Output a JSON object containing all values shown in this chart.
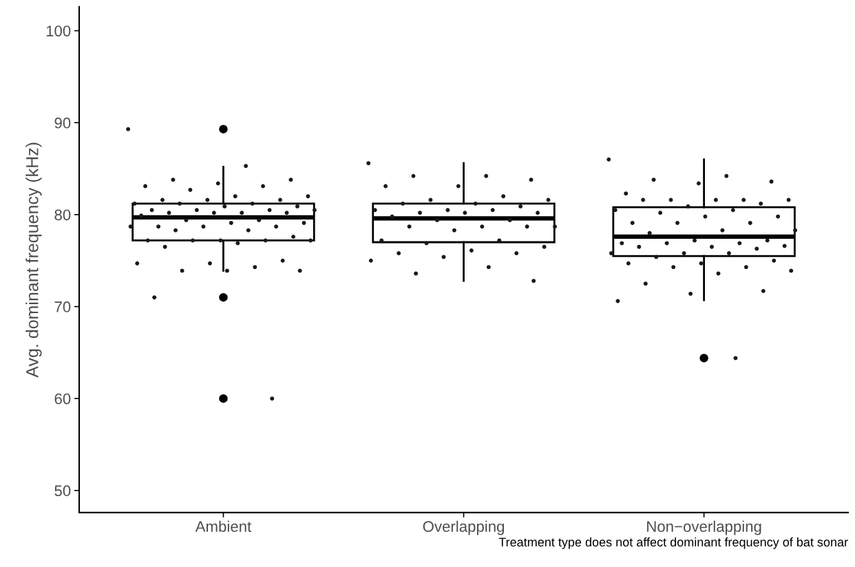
{
  "chart_data": {
    "type": "box",
    "ylabel": "Avg. dominant frequency (kHz)",
    "categories": [
      "Ambient",
      "Overlapping",
      "Non−overlapping"
    ],
    "boxes": [
      {
        "low": 73.9,
        "q1": 77.2,
        "median": 79.7,
        "q3": 81.2,
        "high": 85.2,
        "outliers": [
          89.3,
          71.0,
          60.0
        ]
      },
      {
        "low": 72.8,
        "q1": 77.0,
        "median": 79.6,
        "q3": 81.2,
        "high": 85.6
      },
      {
        "low": 70.7,
        "q1": 75.5,
        "median": 77.6,
        "q3": 80.8,
        "high": 86.0,
        "outliers": [
          64.4
        ]
      }
    ],
    "series": [
      {
        "type": "scatter",
        "color": "#1a1a1a",
        "x": [
          "Ambient",
          "Ambient",
          "Ambient",
          "Ambient",
          "Ambient",
          "Ambient",
          "Ambient",
          "Ambient",
          "Ambient",
          "Ambient",
          "Ambient",
          "Ambient",
          "Ambient",
          "Ambient",
          "Ambient",
          "Ambient",
          "Ambient",
          "Ambient",
          "Ambient",
          "Ambient",
          "Ambient",
          "Ambient",
          "Ambient",
          "Ambient",
          "Ambient",
          "Ambient",
          "Ambient",
          "Ambient",
          "Ambient",
          "Ambient",
          "Ambient",
          "Ambient",
          "Ambient",
          "Ambient",
          "Ambient",
          "Ambient",
          "Ambient",
          "Ambient",
          "Ambient",
          "Ambient",
          "Ambient",
          "Ambient",
          "Ambient",
          "Ambient",
          "Ambient",
          "Ambient",
          "Ambient",
          "Ambient",
          "Ambient",
          "Ambient",
          "Ambient",
          "Ambient",
          "Ambient",
          "Ambient"
        ],
        "values": [
          89.3,
          85.3,
          83.8,
          83.8,
          83.4,
          83.1,
          83.1,
          82.7,
          82.0,
          82.0,
          81.6,
          81.6,
          81.6,
          81.2,
          81.2,
          81.2,
          80.9,
          80.9,
          80.5,
          80.5,
          80.5,
          80.5,
          80.2,
          80.2,
          80.2,
          80.2,
          79.9,
          79.4,
          79.4,
          79.1,
          79.1,
          78.7,
          78.7,
          78.7,
          78.7,
          78.3,
          78.3,
          77.6,
          77.2,
          77.2,
          77.2,
          77.2,
          77.2,
          76.9,
          76.5,
          75.0,
          74.7,
          74.7,
          74.3,
          73.9,
          73.9,
          73.9,
          71.0,
          60.0
        ]
      },
      {
        "type": "scatter",
        "color": "#1a1a1a",
        "x": [
          "Overlapping",
          "Overlapping",
          "Overlapping",
          "Overlapping",
          "Overlapping",
          "Overlapping",
          "Overlapping",
          "Overlapping",
          "Overlapping",
          "Overlapping",
          "Overlapping",
          "Overlapping",
          "Overlapping",
          "Overlapping",
          "Overlapping",
          "Overlapping",
          "Overlapping",
          "Overlapping",
          "Overlapping",
          "Overlapping",
          "Overlapping",
          "Overlapping",
          "Overlapping",
          "Overlapping",
          "Overlapping",
          "Overlapping",
          "Overlapping",
          "Overlapping",
          "Overlapping",
          "Overlapping",
          "Overlapping",
          "Overlapping",
          "Overlapping",
          "Overlapping",
          "Overlapping",
          "Overlapping",
          "Overlapping",
          "Overlapping"
        ],
        "values": [
          85.6,
          84.2,
          84.2,
          83.8,
          83.1,
          83.1,
          82.0,
          81.6,
          81.6,
          81.2,
          81.2,
          80.9,
          80.5,
          80.5,
          80.5,
          80.2,
          80.2,
          80.2,
          79.8,
          79.4,
          79.4,
          78.7,
          78.7,
          78.7,
          78.7,
          78.3,
          77.2,
          77.2,
          76.9,
          76.5,
          76.1,
          75.8,
          75.8,
          75.4,
          75.0,
          74.3,
          73.6,
          72.8
        ]
      },
      {
        "type": "scatter",
        "color": "#1a1a1a",
        "x": [
          "Non−overlapping",
          "Non−overlapping",
          "Non−overlapping",
          "Non−overlapping",
          "Non−overlapping",
          "Non−overlapping",
          "Non−overlapping",
          "Non−overlapping",
          "Non−overlapping",
          "Non−overlapping",
          "Non−overlapping",
          "Non−overlapping",
          "Non−overlapping",
          "Non−overlapping",
          "Non−overlapping",
          "Non−overlapping",
          "Non−overlapping",
          "Non−overlapping",
          "Non−overlapping",
          "Non−overlapping",
          "Non−overlapping",
          "Non−overlapping",
          "Non−overlapping",
          "Non−overlapping",
          "Non−overlapping",
          "Non−overlapping",
          "Non−overlapping",
          "Non−overlapping",
          "Non−overlapping",
          "Non−overlapping",
          "Non−overlapping",
          "Non−overlapping",
          "Non−overlapping",
          "Non−overlapping",
          "Non−overlapping",
          "Non−overlapping",
          "Non−overlapping",
          "Non−overlapping",
          "Non−overlapping",
          "Non−overlapping",
          "Non−overlapping",
          "Non−overlapping",
          "Non−overlapping",
          "Non−overlapping",
          "Non−overlapping",
          "Non−overlapping",
          "Non−overlapping",
          "Non−overlapping",
          "Non−overlapping"
        ],
        "values": [
          86.0,
          84.2,
          83.8,
          83.6,
          83.4,
          82.3,
          81.6,
          81.6,
          81.6,
          81.6,
          81.6,
          81.2,
          80.9,
          80.5,
          80.5,
          80.2,
          79.8,
          79.8,
          79.1,
          79.1,
          79.1,
          78.3,
          78.3,
          78.0,
          77.2,
          77.2,
          76.9,
          76.9,
          76.9,
          76.6,
          76.5,
          76.5,
          76.3,
          75.8,
          75.8,
          75.8,
          75.4,
          75.0,
          74.7,
          74.7,
          74.3,
          74.3,
          73.9,
          73.6,
          72.5,
          71.7,
          71.4,
          70.6,
          64.4
        ]
      }
    ],
    "ylim": [
      47.6,
      102.6
    ],
    "yticks": [
      50,
      60,
      70,
      80,
      90,
      100
    ],
    "grid": false,
    "legend": false,
    "annotations": [
      "Treatment type does not affect dominant frequency of bat sonar"
    ]
  }
}
